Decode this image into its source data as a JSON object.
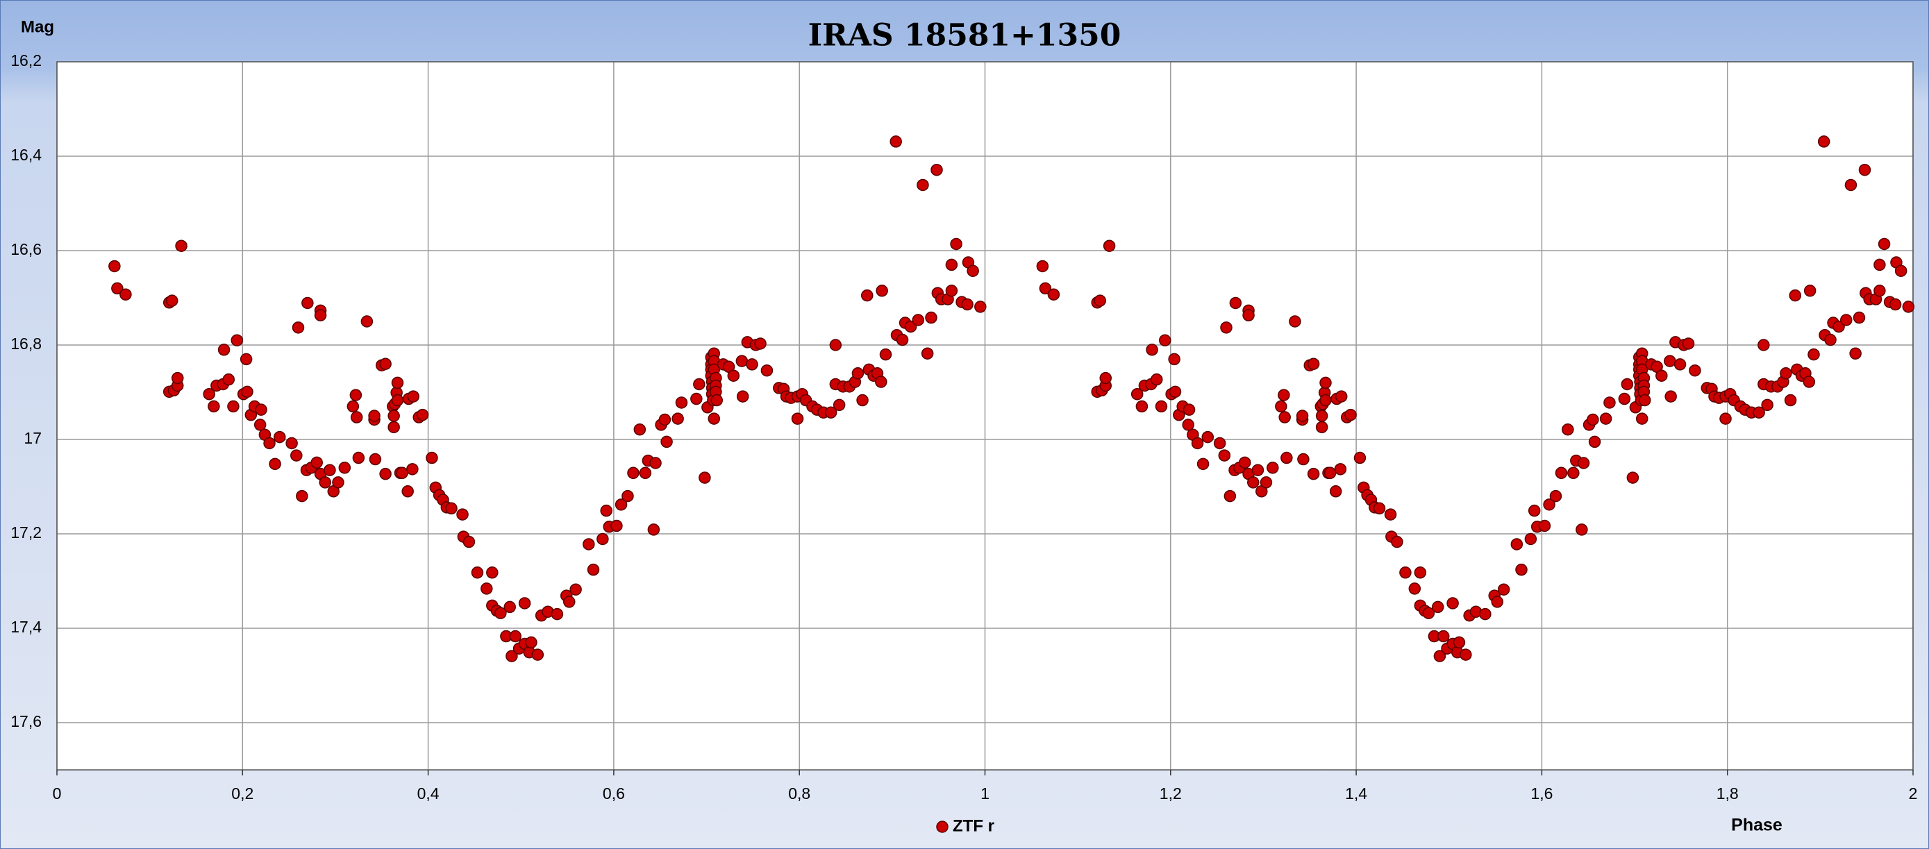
{
  "chart_data": {
    "type": "scatter",
    "title": "IRAS 18581+1350",
    "y_label": "Mag",
    "x_label": "Phase",
    "xlim": [
      0,
      2
    ],
    "ylim": [
      16.2,
      17.7
    ],
    "y_reversed": true,
    "grid": true,
    "xticks": [
      0,
      {
        "value": 0.2,
        "label": "0,2"
      },
      {
        "value": 0.4,
        "label": "0,4"
      },
      {
        "value": 0.6,
        "label": "0,6"
      },
      {
        "value": 0.8,
        "label": "0,8"
      },
      1,
      {
        "value": 1.2,
        "label": "1,2"
      },
      {
        "value": 1.4,
        "label": "1,4"
      },
      {
        "value": 1.6,
        "label": "1,6"
      },
      {
        "value": 1.8,
        "label": "1,8"
      },
      2
    ],
    "yticks": [
      {
        "value": 16.2,
        "label": "16,2"
      },
      {
        "value": 16.4,
        "label": "16,4"
      },
      {
        "value": 16.6,
        "label": "16,6"
      },
      {
        "value": 16.8,
        "label": "16,8"
      },
      17,
      {
        "value": 17.2,
        "label": "17,2"
      },
      {
        "value": 17.4,
        "label": "17,4"
      },
      {
        "value": 17.6,
        "label": "17,6"
      }
    ],
    "series": [
      {
        "name": "ZTF r",
        "color": "#cc0000",
        "x": [
          0.062,
          0.065,
          0.074,
          0.121,
          0.124,
          0.134,
          0.121,
          0.126,
          0.13,
          0.13,
          0.164,
          0.169,
          0.172,
          0.179,
          0.18,
          0.185,
          0.19,
          0.194,
          0.201,
          0.204,
          0.205,
          0.209,
          0.213,
          0.219,
          0.22,
          0.224,
          0.229,
          0.235,
          0.24,
          0.253,
          0.258,
          0.26,
          0.264,
          0.269,
          0.27,
          0.274,
          0.28,
          0.284,
          0.284,
          0.284,
          0.289,
          0.294,
          0.298,
          0.303,
          0.31,
          0.319,
          0.322,
          0.323,
          0.325,
          0.334,
          0.342,
          0.342,
          0.343,
          0.35,
          0.354,
          0.354,
          0.362,
          0.363,
          0.363,
          0.364,
          0.366,
          0.367,
          0.367,
          0.37,
          0.372,
          0.378,
          0.379,
          0.383,
          0.384,
          0.39,
          0.394,
          0.404,
          0.408,
          0.412,
          0.416,
          0.42,
          0.425,
          0.437,
          0.438,
          0.444,
          0.453,
          0.463,
          0.469,
          0.469,
          0.474,
          0.478,
          0.484,
          0.488,
          0.49,
          0.494,
          0.498,
          0.504,
          0.504,
          0.509,
          0.511,
          0.518,
          0.522,
          0.529,
          0.539,
          0.549,
          0.552,
          0.559,
          0.573,
          0.578,
          0.588,
          0.592,
          0.595,
          0.603,
          0.608,
          0.615,
          0.621,
          0.628,
          0.634,
          0.637,
          0.643,
          0.645,
          0.651,
          0.655,
          0.657,
          0.669,
          0.673,
          0.689,
          0.692,
          0.698,
          0.701,
          0.705,
          0.705,
          0.705,
          0.705,
          0.706,
          0.706,
          0.706,
          0.707,
          0.708,
          0.708,
          0.708,
          0.71,
          0.71,
          0.71,
          0.711,
          0.708,
          0.718,
          0.724,
          0.729,
          0.738,
          0.739,
          0.744,
          0.749,
          0.753,
          0.758,
          0.765,
          0.778,
          0.783,
          0.786,
          0.791,
          0.798,
          0.798,
          0.803,
          0.807,
          0.814,
          0.819,
          0.826,
          0.834,
          0.839,
          0.839,
          0.843,
          0.847,
          0.854,
          0.86,
          0.863,
          0.868,
          0.873,
          0.875,
          0.88,
          0.884,
          0.888,
          0.889,
          0.893,
          0.904,
          0.905,
          0.911,
          0.914,
          0.92,
          0.928,
          0.933,
          0.938,
          0.942,
          0.948,
          0.949,
          0.953,
          0.96,
          0.964,
          0.964,
          0.969,
          0.975,
          0.982,
          0.987,
          0.995,
          0.981,
          1.062,
          1.065,
          1.074,
          1.121,
          1.124,
          1.134,
          1.121,
          1.126,
          1.13,
          1.13,
          1.164,
          1.169,
          1.172,
          1.179,
          1.18,
          1.185,
          1.19,
          1.194,
          1.201,
          1.204,
          1.205,
          1.209,
          1.213,
          1.219,
          1.22,
          1.224,
          1.229,
          1.235,
          1.24,
          1.253,
          1.258,
          1.26,
          1.264,
          1.269,
          1.27,
          1.274,
          1.28,
          1.284,
          1.284,
          1.284,
          1.289,
          1.294,
          1.298,
          1.303,
          1.31,
          1.319,
          1.322,
          1.323,
          1.325,
          1.334,
          1.342,
          1.342,
          1.343,
          1.35,
          1.354,
          1.354,
          1.362,
          1.363,
          1.363,
          1.364,
          1.366,
          1.367,
          1.367,
          1.37,
          1.372,
          1.378,
          1.379,
          1.383,
          1.384,
          1.39,
          1.394,
          1.404,
          1.408,
          1.412,
          1.416,
          1.42,
          1.425,
          1.437,
          1.438,
          1.444,
          1.453,
          1.463,
          1.469,
          1.469,
          1.474,
          1.478,
          1.484,
          1.488,
          1.49,
          1.494,
          1.498,
          1.504,
          1.504,
          1.509,
          1.511,
          1.518,
          1.522,
          1.529,
          1.539,
          1.549,
          1.552,
          1.559,
          1.573,
          1.578,
          1.588,
          1.592,
          1.595,
          1.603,
          1.608,
          1.615,
          1.621,
          1.628,
          1.634,
          1.637,
          1.643,
          1.645,
          1.651,
          1.655,
          1.657,
          1.669,
          1.673,
          1.689,
          1.692,
          1.698,
          1.701,
          1.705,
          1.705,
          1.705,
          1.705,
          1.706,
          1.706,
          1.706,
          1.707,
          1.708,
          1.708,
          1.708,
          1.71,
          1.71,
          1.71,
          1.711,
          1.708,
          1.718,
          1.724,
          1.729,
          1.738,
          1.739,
          1.744,
          1.749,
          1.753,
          1.758,
          1.765,
          1.778,
          1.783,
          1.786,
          1.791,
          1.798,
          1.798,
          1.803,
          1.807,
          1.814,
          1.819,
          1.826,
          1.834,
          1.839,
          1.839,
          1.843,
          1.847,
          1.854,
          1.86,
          1.863,
          1.868,
          1.873,
          1.875,
          1.88,
          1.884,
          1.888,
          1.889,
          1.893,
          1.904,
          1.905,
          1.911,
          1.914,
          1.92,
          1.928,
          1.933,
          1.938,
          1.942,
          1.948,
          1.949,
          1.953,
          1.96,
          1.964,
          1.964,
          1.969,
          1.975,
          1.982,
          1.987,
          1.995,
          1.981
        ],
        "values": [
          16.633,
          16.68,
          16.693,
          16.71,
          16.706,
          16.59,
          16.899,
          16.896,
          16.886,
          16.87,
          16.904,
          16.93,
          16.886,
          16.883,
          16.81,
          16.873,
          16.93,
          16.79,
          16.904,
          16.83,
          16.899,
          16.948,
          16.93,
          16.969,
          16.937,
          16.99,
          17.008,
          17.052,
          16.995,
          17.008,
          17.034,
          16.763,
          17.12,
          17.065,
          16.711,
          17.06,
          17.049,
          16.727,
          16.737,
          17.073,
          17.091,
          17.065,
          17.11,
          17.091,
          17.06,
          16.93,
          16.906,
          16.953,
          17.039,
          16.75,
          16.958,
          16.95,
          17.042,
          16.843,
          16.84,
          17.073,
          16.93,
          16.95,
          16.974,
          16.925,
          16.901,
          16.88,
          16.917,
          17.071,
          17.071,
          17.11,
          16.914,
          17.063,
          16.909,
          16.953,
          16.948,
          17.039,
          17.102,
          17.118,
          17.128,
          17.144,
          17.146,
          17.159,
          17.206,
          17.217,
          17.282,
          17.316,
          17.282,
          17.352,
          17.363,
          17.368,
          17.417,
          17.355,
          17.459,
          17.417,
          17.443,
          17.347,
          17.433,
          17.451,
          17.43,
          17.456,
          17.373,
          17.365,
          17.37,
          17.331,
          17.344,
          17.318,
          17.222,
          17.276,
          17.211,
          17.151,
          17.185,
          17.183,
          17.138,
          17.12,
          17.071,
          16.979,
          17.071,
          17.045,
          17.191,
          17.05,
          16.969,
          16.958,
          17.005,
          16.956,
          16.922,
          16.914,
          16.883,
          17.081,
          16.932,
          16.826,
          16.841,
          16.852,
          16.865,
          16.878,
          16.891,
          16.904,
          16.917,
          16.818,
          16.834,
          16.852,
          16.87,
          16.886,
          16.899,
          16.917,
          16.956,
          16.841,
          16.846,
          16.865,
          16.834,
          16.909,
          16.794,
          16.841,
          16.8,
          16.797,
          16.854,
          16.891,
          16.893,
          16.909,
          16.912,
          16.956,
          16.909,
          16.904,
          16.917,
          16.93,
          16.937,
          16.943,
          16.943,
          16.883,
          16.8,
          16.927,
          16.888,
          16.888,
          16.878,
          16.86,
          16.917,
          16.695,
          16.852,
          16.865,
          16.86,
          16.878,
          16.685,
          16.82,
          16.369,
          16.779,
          16.789,
          16.753,
          16.761,
          16.747,
          16.461,
          16.818,
          16.742,
          16.429,
          16.69,
          16.703,
          16.703,
          16.685,
          16.63,
          16.586,
          16.709,
          16.625,
          16.643,
          16.719,
          16.714,
          16.633,
          16.68,
          16.693,
          16.71,
          16.706,
          16.59,
          16.899,
          16.896,
          16.886,
          16.87,
          16.904,
          16.93,
          16.886,
          16.883,
          16.81,
          16.873,
          16.93,
          16.79,
          16.904,
          16.83,
          16.899,
          16.948,
          16.93,
          16.969,
          16.937,
          16.99,
          17.008,
          17.052,
          16.995,
          17.008,
          17.034,
          16.763,
          17.12,
          17.065,
          16.711,
          17.06,
          17.049,
          16.727,
          16.737,
          17.073,
          17.091,
          17.065,
          17.11,
          17.091,
          17.06,
          16.93,
          16.906,
          16.953,
          17.039,
          16.75,
          16.958,
          16.95,
          17.042,
          16.843,
          16.84,
          17.073,
          16.93,
          16.95,
          16.974,
          16.925,
          16.901,
          16.88,
          16.917,
          17.071,
          17.071,
          17.11,
          16.914,
          17.063,
          16.909,
          16.953,
          16.948,
          17.039,
          17.102,
          17.118,
          17.128,
          17.144,
          17.146,
          17.159,
          17.206,
          17.217,
          17.282,
          17.316,
          17.282,
          17.352,
          17.363,
          17.368,
          17.417,
          17.355,
          17.459,
          17.417,
          17.443,
          17.347,
          17.433,
          17.451,
          17.43,
          17.456,
          17.373,
          17.365,
          17.37,
          17.331,
          17.344,
          17.318,
          17.222,
          17.276,
          17.211,
          17.151,
          17.185,
          17.183,
          17.138,
          17.12,
          17.071,
          16.979,
          17.071,
          17.045,
          17.191,
          17.05,
          16.969,
          16.958,
          17.005,
          16.956,
          16.922,
          16.914,
          16.883,
          17.081,
          16.932,
          16.826,
          16.841,
          16.852,
          16.865,
          16.878,
          16.891,
          16.904,
          16.917,
          16.818,
          16.834,
          16.852,
          16.87,
          16.886,
          16.899,
          16.917,
          16.956,
          16.841,
          16.846,
          16.865,
          16.834,
          16.909,
          16.794,
          16.841,
          16.8,
          16.797,
          16.854,
          16.891,
          16.893,
          16.909,
          16.912,
          16.956,
          16.909,
          16.904,
          16.917,
          16.93,
          16.937,
          16.943,
          16.943,
          16.883,
          16.8,
          16.927,
          16.888,
          16.888,
          16.878,
          16.86,
          16.917,
          16.695,
          16.852,
          16.865,
          16.86,
          16.878,
          16.685,
          16.82,
          16.369,
          16.779,
          16.789,
          16.753,
          16.761,
          16.747,
          16.461,
          16.818,
          16.742,
          16.429,
          16.69,
          16.703,
          16.703,
          16.685,
          16.63,
          16.586,
          16.709,
          16.625,
          16.643,
          16.719,
          16.714
        ]
      }
    ]
  }
}
